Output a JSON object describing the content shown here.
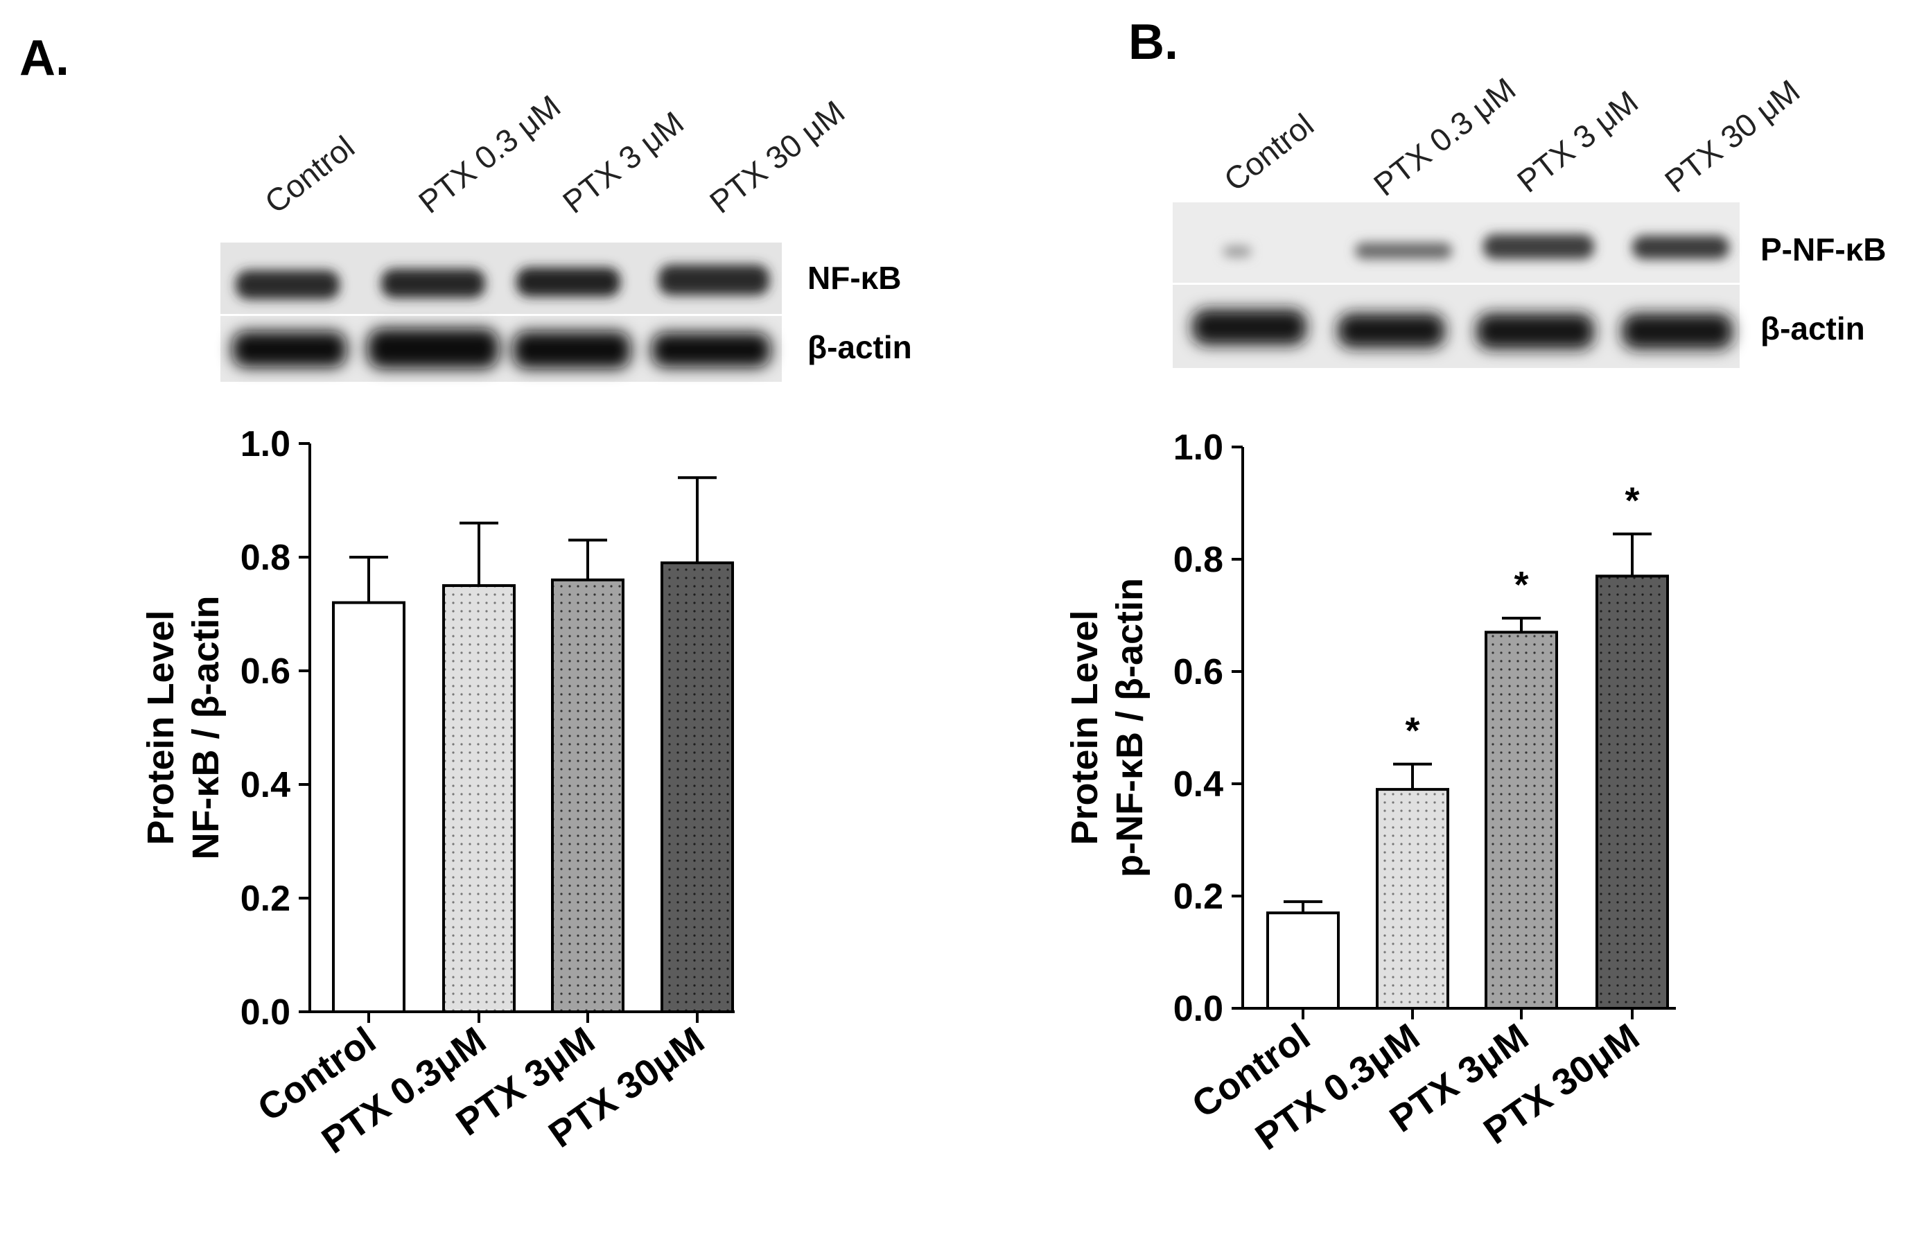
{
  "panels": [
    {
      "letter": "A.",
      "blot": {
        "lane_labels": [
          "Control",
          "PTX 0.3 μM",
          "PTX 3 μM",
          "PTX 30 μM"
        ],
        "band_labels": [
          "NF-κB",
          "β-actin"
        ]
      }
    },
    {
      "letter": "B.",
      "blot": {
        "lane_labels": [
          "Control",
          "PTX 0.3 μM",
          "PTX 3 μM",
          "PTX 30 μM"
        ],
        "band_labels": [
          "P-NF-κB",
          "β-actin"
        ]
      }
    }
  ],
  "chart_data": [
    {
      "type": "bar",
      "categories": [
        "Control",
        "PTX 0.3μM",
        "PTX 3μM",
        "PTX 30μM"
      ],
      "values": [
        0.72,
        0.75,
        0.76,
        0.79
      ],
      "errors": [
        0.08,
        0.11,
        0.07,
        0.15
      ],
      "significance": [
        "",
        "",
        "",
        ""
      ],
      "ylabel_line1": "Protein Level",
      "ylabel_line2": "NF-κB / β-actin",
      "ylim": [
        0,
        1.0
      ],
      "yticks": [
        "0.0",
        "0.2",
        "0.4",
        "0.6",
        "0.8",
        "1.0"
      ],
      "bar_fills": [
        "#ffffff",
        "#d9d9d9",
        "#a6a6a6",
        "#595959"
      ]
    },
    {
      "type": "bar",
      "categories": [
        "Control",
        "PTX 0.3μM",
        "PTX 3μM",
        "PTX 30μM"
      ],
      "values": [
        0.17,
        0.39,
        0.67,
        0.77
      ],
      "errors": [
        0.02,
        0.045,
        0.025,
        0.075
      ],
      "significance": [
        "",
        "*",
        "*",
        "*"
      ],
      "ylabel_line1": "Protein Level",
      "ylabel_line2": "p-NF-κB / β-actin",
      "ylim": [
        0,
        1.0
      ],
      "yticks": [
        "0.0",
        "0.2",
        "0.4",
        "0.6",
        "0.8",
        "1.0"
      ],
      "bar_fills": [
        "#ffffff",
        "#d9d9d9",
        "#a6a6a6",
        "#595959"
      ]
    }
  ]
}
